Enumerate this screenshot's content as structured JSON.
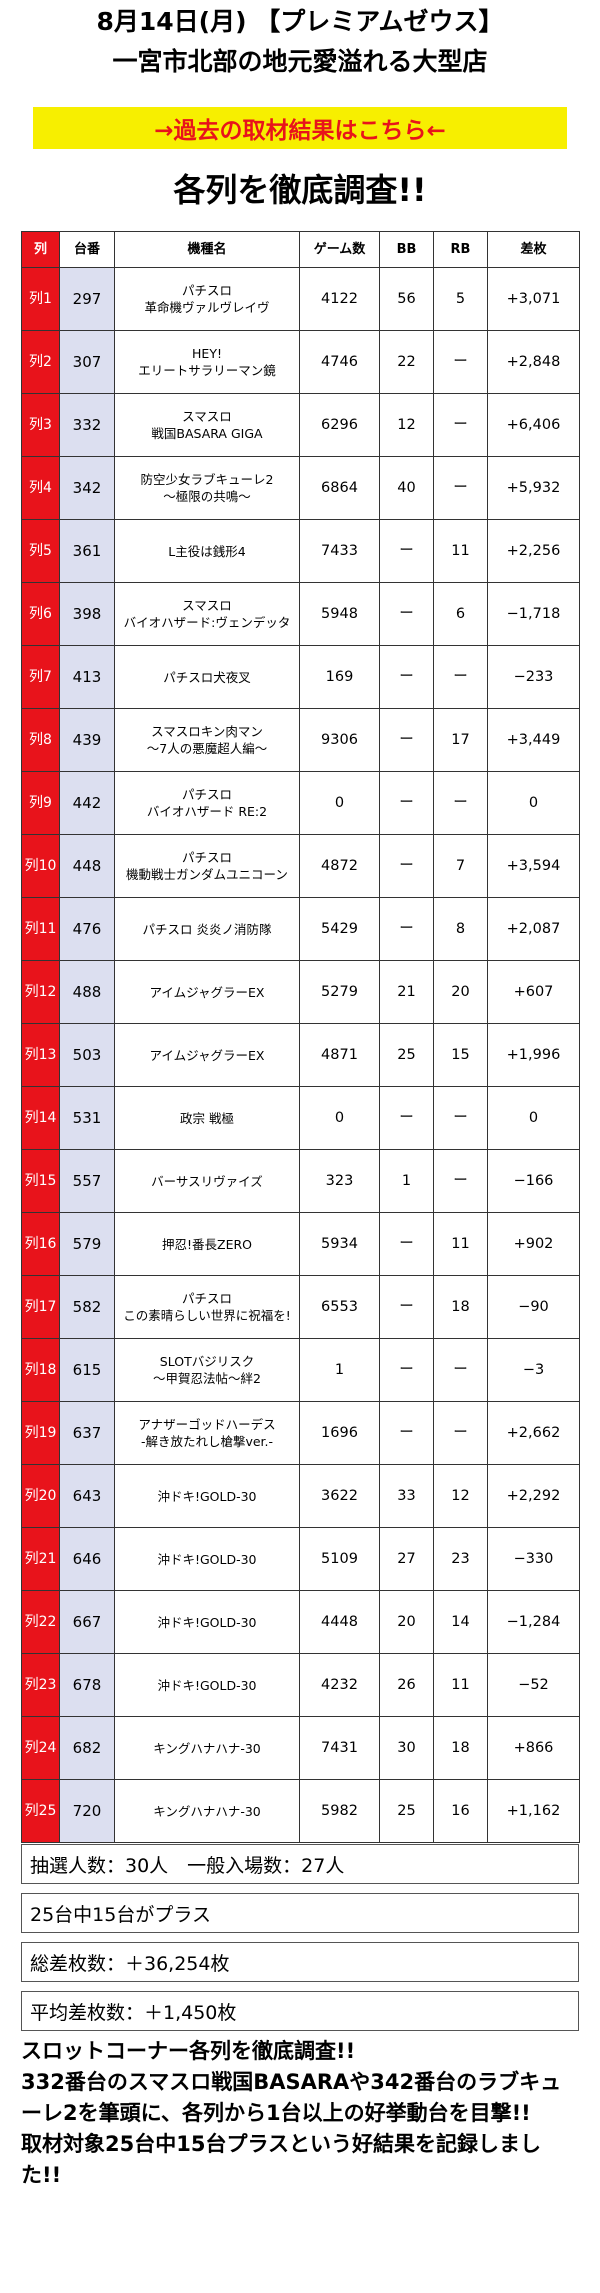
{
  "header": {
    "line1": "8月14日(月) 【プレミアムゼウス】",
    "line2": "一宮市北部の地元愛溢れる大型店"
  },
  "link_banner": "→過去の取材結果はこちら←",
  "heading": "各列を徹底調査!!",
  "table": {
    "columns": [
      "列",
      "台番",
      "機種名",
      "ゲーム数",
      "BB",
      "RB",
      "差枚"
    ],
    "rows": [
      {
        "retsu": "列1",
        "daiban": "297",
        "model": [
          "パチスロ",
          "革命機ヴァルヴレイヴ"
        ],
        "games": "4122",
        "bb": "56",
        "rb": "5",
        "diff": "+3,071"
      },
      {
        "retsu": "列2",
        "daiban": "307",
        "model": [
          "HEY!",
          "エリートサラリーマン鏡"
        ],
        "games": "4746",
        "bb": "22",
        "rb": "ー",
        "diff": "+2,848"
      },
      {
        "retsu": "列3",
        "daiban": "332",
        "model": [
          "スマスロ",
          "戦国BASARA GIGA"
        ],
        "games": "6296",
        "bb": "12",
        "rb": "ー",
        "diff": "+6,406"
      },
      {
        "retsu": "列4",
        "daiban": "342",
        "model": [
          "防空少女ラブキューレ2",
          "〜極限の共鳴〜"
        ],
        "games": "6864",
        "bb": "40",
        "rb": "ー",
        "diff": "+5,932"
      },
      {
        "retsu": "列5",
        "daiban": "361",
        "model": [
          "L主役は銭形4"
        ],
        "games": "7433",
        "bb": "ー",
        "rb": "11",
        "diff": "+2,256"
      },
      {
        "retsu": "列6",
        "daiban": "398",
        "model": [
          "スマスロ",
          "バイオハザード:ヴェンデッタ"
        ],
        "games": "5948",
        "bb": "ー",
        "rb": "6",
        "diff": "−1,718"
      },
      {
        "retsu": "列7",
        "daiban": "413",
        "model": [
          "パチスロ犬夜叉"
        ],
        "games": "169",
        "bb": "ー",
        "rb": "ー",
        "diff": "−233"
      },
      {
        "retsu": "列8",
        "daiban": "439",
        "model": [
          "スマスロキン肉マン",
          "〜7人の悪魔超人編〜"
        ],
        "games": "9306",
        "bb": "ー",
        "rb": "17",
        "diff": "+3,449"
      },
      {
        "retsu": "列9",
        "daiban": "442",
        "model": [
          "パチスロ",
          "バイオハザード RE:2"
        ],
        "games": "0",
        "bb": "ー",
        "rb": "ー",
        "diff": "0"
      },
      {
        "retsu": "列10",
        "daiban": "448",
        "model": [
          "パチスロ",
          "機動戦士ガンダムユニコーン"
        ],
        "games": "4872",
        "bb": "ー",
        "rb": "7",
        "diff": "+3,594"
      },
      {
        "retsu": "列11",
        "daiban": "476",
        "model": [
          "パチスロ 炎炎ノ消防隊"
        ],
        "games": "5429",
        "bb": "ー",
        "rb": "8",
        "diff": "+2,087"
      },
      {
        "retsu": "列12",
        "daiban": "488",
        "model": [
          "アイムジャグラーEX"
        ],
        "games": "5279",
        "bb": "21",
        "rb": "20",
        "diff": "+607"
      },
      {
        "retsu": "列13",
        "daiban": "503",
        "model": [
          "アイムジャグラーEX"
        ],
        "games": "4871",
        "bb": "25",
        "rb": "15",
        "diff": "+1,996"
      },
      {
        "retsu": "列14",
        "daiban": "531",
        "model": [
          "政宗 戦極"
        ],
        "games": "0",
        "bb": "ー",
        "rb": "ー",
        "diff": "0"
      },
      {
        "retsu": "列15",
        "daiban": "557",
        "model": [
          "バーサスリヴァイズ"
        ],
        "games": "323",
        "bb": "1",
        "rb": "ー",
        "diff": "−166"
      },
      {
        "retsu": "列16",
        "daiban": "579",
        "model": [
          "押忍!番長ZERO"
        ],
        "games": "5934",
        "bb": "ー",
        "rb": "11",
        "diff": "+902"
      },
      {
        "retsu": "列17",
        "daiban": "582",
        "model": [
          "パチスロ",
          "この素晴らしい世界に祝福を!"
        ],
        "games": "6553",
        "bb": "ー",
        "rb": "18",
        "diff": "−90"
      },
      {
        "retsu": "列18",
        "daiban": "615",
        "model": [
          "SLOTバジリスク",
          "〜甲賀忍法帖〜絆2"
        ],
        "games": "1",
        "bb": "ー",
        "rb": "ー",
        "diff": "−3"
      },
      {
        "retsu": "列19",
        "daiban": "637",
        "model": [
          "アナザーゴッドハーデス",
          "-解き放たれし槍撃ver.-"
        ],
        "games": "1696",
        "bb": "ー",
        "rb": "ー",
        "diff": "+2,662"
      },
      {
        "retsu": "列20",
        "daiban": "643",
        "model": [
          "沖ドキ!GOLD-30"
        ],
        "games": "3622",
        "bb": "33",
        "rb": "12",
        "diff": "+2,292"
      },
      {
        "retsu": "列21",
        "daiban": "646",
        "model": [
          "沖ドキ!GOLD-30"
        ],
        "games": "5109",
        "bb": "27",
        "rb": "23",
        "diff": "−330"
      },
      {
        "retsu": "列22",
        "daiban": "667",
        "model": [
          "沖ドキ!GOLD-30"
        ],
        "games": "4448",
        "bb": "20",
        "rb": "14",
        "diff": "−1,284"
      },
      {
        "retsu": "列23",
        "daiban": "678",
        "model": [
          "沖ドキ!GOLD-30"
        ],
        "games": "4232",
        "bb": "26",
        "rb": "11",
        "diff": "−52"
      },
      {
        "retsu": "列24",
        "daiban": "682",
        "model": [
          "キングハナハナ-30"
        ],
        "games": "7431",
        "bb": "30",
        "rb": "18",
        "diff": "+866"
      },
      {
        "retsu": "列25",
        "daiban": "720",
        "model": [
          "キングハナハナ-30"
        ],
        "games": "5982",
        "bb": "25",
        "rb": "16",
        "diff": "+1,162"
      }
    ]
  },
  "summary": {
    "entrants": "抽選人数：30人　一般入場数：27人",
    "plus_count": "25台中15台がプラス",
    "total_diff": "総差枚数：＋36,254枚",
    "avg_diff": "平均差枚数：＋1,450枚"
  },
  "description": [
    "スロットコーナー各列を徹底調査!!",
    "332番台のスマスロ戦国BASARAや342番台のラブキューレ2を筆頭に、各列から1台以上の好挙動台を目撃!!",
    "取材対象25台中15台プラスという好結果を記録しました!!"
  ],
  "colors": {
    "accent_red": "#e8131b",
    "banner_yellow": "#f7ef00",
    "daiban_bg": "#dcdff0"
  }
}
